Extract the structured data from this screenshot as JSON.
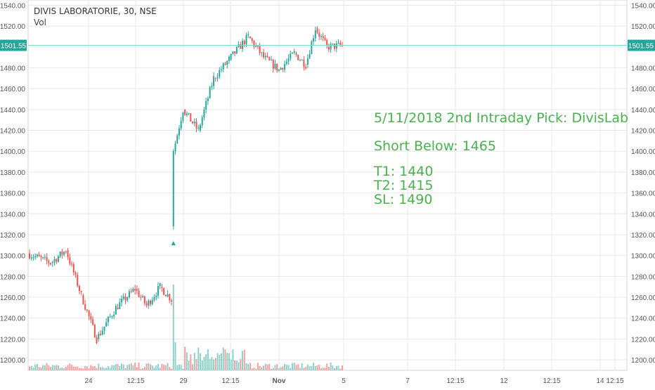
{
  "header": {
    "title": "DIVIS LABORATORIE, 30, NSE",
    "indicator": "Vol"
  },
  "annotation": {
    "line1": "5/11/2018 2nd Intraday Pick: DivisLab",
    "line2": "Short Below: 1465",
    "line3": "T1: 1440",
    "line4": "T2: 1415",
    "line5": "SL: 1490"
  },
  "colors": {
    "up": "#26a69a",
    "down": "#ef5350",
    "vol_up": "#8fd1c9",
    "vol_down": "#f5a0a0",
    "grid": "#e8e8e8",
    "price_line": "#7fd6cc",
    "price_label_bg": "#26a69a",
    "annotation": "#4CAF50"
  },
  "chart_data": {
    "type": "candlestick",
    "symbol": "DIVIS LABORATORIE",
    "interval": "30",
    "exchange": "NSE",
    "last_price_label": "1501.55",
    "y_ticks": [
      "1200.00",
      "1220.00",
      "1240.00",
      "1260.00",
      "1280.00",
      "1300.00",
      "1320.00",
      "1340.00",
      "1360.00",
      "1380.00",
      "1400.00",
      "1420.00",
      "1440.00",
      "1460.00",
      "1480.00",
      "1500.00",
      "1520.00",
      "1540.00"
    ],
    "ylim": [
      1196,
      1543
    ],
    "x_ticks": [
      "24",
      "12:15",
      "29",
      "12:15",
      "Nov",
      "5",
      "7",
      "12:15",
      "12",
      "12:15",
      "14",
      "12:15"
    ],
    "marker": {
      "type": "arrow-up",
      "price": 1320
    },
    "price_segments": [
      {
        "from": 1302,
        "to": 1293,
        "bars": 12
      },
      {
        "from": 1293,
        "to": 1305,
        "bars": 8
      },
      {
        "from": 1305,
        "to": 1262,
        "bars": 8
      },
      {
        "from": 1262,
        "to": 1220,
        "bars": 8
      },
      {
        "from": 1220,
        "to": 1250,
        "bars": 10
      },
      {
        "from": 1250,
        "to": 1268,
        "bars": 10
      },
      {
        "from": 1268,
        "to": 1252,
        "bars": 6
      },
      {
        "from": 1252,
        "to": 1270,
        "bars": 7
      },
      {
        "from": 1270,
        "to": 1258,
        "bars": 6
      },
      {
        "from": 1400,
        "to": 1440,
        "bars": 5
      },
      {
        "from": 1440,
        "to": 1420,
        "bars": 8
      },
      {
        "from": 1420,
        "to": 1470,
        "bars": 8
      },
      {
        "from": 1470,
        "to": 1488,
        "bars": 8
      },
      {
        "from": 1488,
        "to": 1510,
        "bars": 10
      },
      {
        "from": 1510,
        "to": 1490,
        "bars": 8
      },
      {
        "from": 1490,
        "to": 1478,
        "bars": 8
      },
      {
        "from": 1478,
        "to": 1494,
        "bars": 8
      },
      {
        "from": 1494,
        "to": 1483,
        "bars": 6
      },
      {
        "from": 1483,
        "to": 1518,
        "bars": 5
      },
      {
        "from": 1518,
        "to": 1500,
        "bars": 6
      },
      {
        "from": 1500,
        "to": 1501.55,
        "bars": 8
      }
    ],
    "gap_candle": {
      "open": 1328,
      "close": 1400,
      "high": 1402,
      "low": 1325
    }
  }
}
